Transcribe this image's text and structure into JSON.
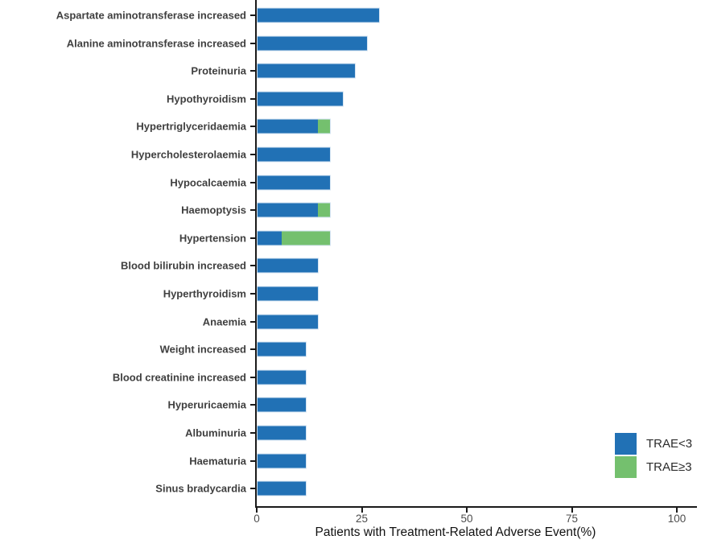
{
  "chart_data": {
    "type": "bar",
    "orientation": "horizontal",
    "stacked": true,
    "title": "",
    "xlabel": "Patients with Treatment-Related Adverse Event(%)",
    "ylabel": "",
    "xlim": [
      0,
      104
    ],
    "x_ticks": [
      0,
      25,
      50,
      75,
      100
    ],
    "grid": false,
    "legend_position": "bottom-right",
    "categories": [
      "Aspartate aminotransferase increased",
      "Alanine aminotransferase increased",
      "Proteinuria",
      "Hypothyroidism",
      "Hypertriglyceridaemia",
      "Hypercholesterolaemia",
      "Hypocalcaemia",
      "Haemoptysis",
      "Hypertension",
      "Blood bilirubin increased",
      "Hyperthyroidism",
      "Anaemia",
      "Weight increased",
      "Blood creatinine increased",
      "Hyperuricaemia",
      "Albuminuria",
      "Haematuria",
      "Sinus bradycardia"
    ],
    "series": [
      {
        "name": "TRAE<3",
        "color": "#2171b5",
        "values": [
          29.4,
          26.5,
          23.5,
          20.6,
          14.7,
          17.6,
          17.6,
          14.7,
          5.9,
          14.7,
          14.7,
          14.7,
          11.8,
          11.8,
          11.8,
          11.8,
          11.8,
          11.8
        ]
      },
      {
        "name": "TRAE≥3",
        "color": "#74c06e",
        "values": [
          0,
          0,
          0,
          0,
          2.9,
          0,
          0,
          2.9,
          11.8,
          0,
          0,
          0,
          0,
          0,
          0,
          0,
          0,
          0
        ]
      }
    ],
    "colors": {
      "axis": "#1a1a1a",
      "category_label": "#3f3f3f",
      "tick_label": "#4d4d4d",
      "axis_title": "#111111",
      "bar_edge": "#d3e3f2",
      "background": "#ffffff"
    }
  }
}
